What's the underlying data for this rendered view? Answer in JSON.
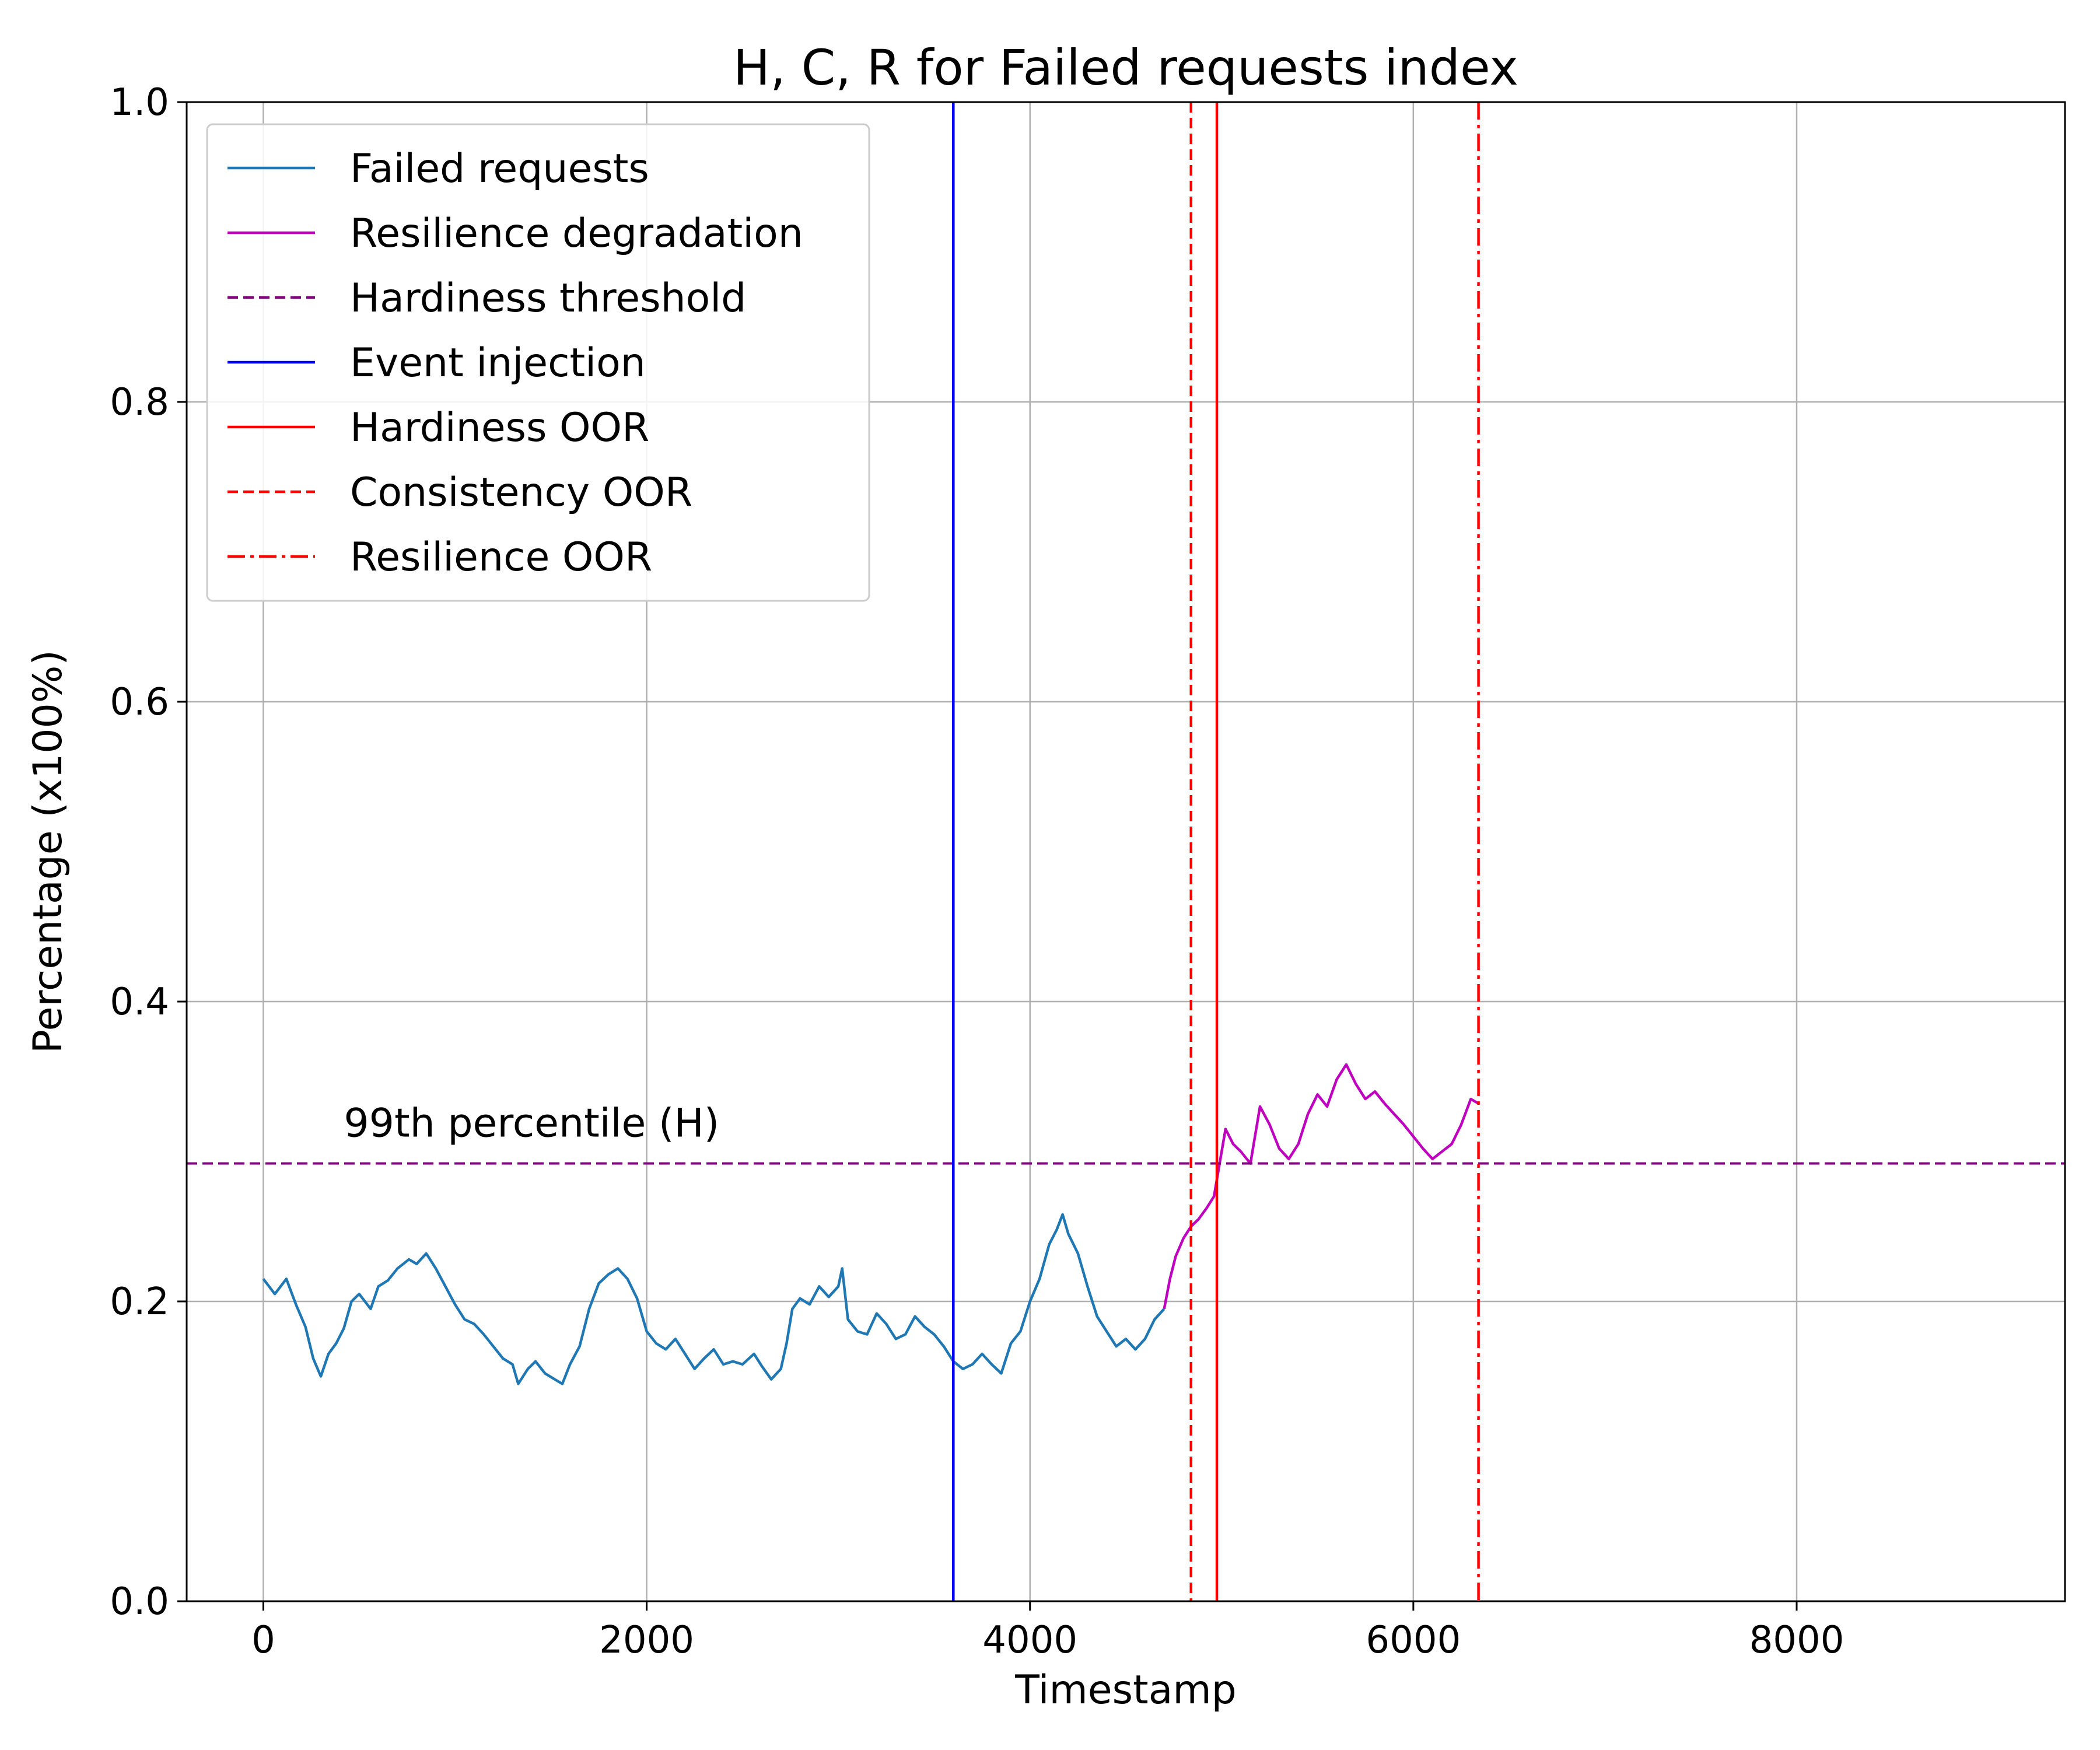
{
  "chart_data": {
    "type": "line",
    "title": "H, C, R for Failed requests index",
    "xlabel": "Timestamp",
    "ylabel": "Percentage (x100%)",
    "xlim": [
      -400,
      9400
    ],
    "ylim": [
      0.0,
      1.0
    ],
    "xticks": [
      0,
      2000,
      4000,
      6000,
      8000
    ],
    "xtick_labels": [
      "0",
      "2000",
      "4000",
      "6000",
      "8000"
    ],
    "yticks": [
      0.0,
      0.2,
      0.4,
      0.6,
      0.8,
      1.0
    ],
    "ytick_labels": [
      "0.0",
      "0.2",
      "0.4",
      "0.6",
      "0.8",
      "1.0"
    ],
    "grid": true,
    "legend_position": "upper-left",
    "colors": {
      "failed_requests": "#1f77b4",
      "resilience_degradation": "#bf00bf",
      "hardiness_threshold": "#800080",
      "event_injection": "#0000ff",
      "oor": "#ff0000"
    },
    "series": [
      {
        "name": "Failed requests",
        "style": "solid",
        "color": "#1f77b4",
        "points": [
          [
            0,
            0.215
          ],
          [
            60,
            0.205
          ],
          [
            120,
            0.215
          ],
          [
            170,
            0.198
          ],
          [
            220,
            0.183
          ],
          [
            260,
            0.162
          ],
          [
            300,
            0.15
          ],
          [
            340,
            0.165
          ],
          [
            380,
            0.172
          ],
          [
            420,
            0.182
          ],
          [
            460,
            0.2
          ],
          [
            500,
            0.205
          ],
          [
            560,
            0.195
          ],
          [
            600,
            0.21
          ],
          [
            650,
            0.214
          ],
          [
            700,
            0.222
          ],
          [
            760,
            0.228
          ],
          [
            800,
            0.225
          ],
          [
            850,
            0.232
          ],
          [
            900,
            0.222
          ],
          [
            950,
            0.21
          ],
          [
            1000,
            0.198
          ],
          [
            1050,
            0.188
          ],
          [
            1100,
            0.185
          ],
          [
            1150,
            0.178
          ],
          [
            1200,
            0.17
          ],
          [
            1250,
            0.162
          ],
          [
            1300,
            0.158
          ],
          [
            1330,
            0.145
          ],
          [
            1380,
            0.155
          ],
          [
            1420,
            0.16
          ],
          [
            1470,
            0.152
          ],
          [
            1520,
            0.148
          ],
          [
            1560,
            0.145
          ],
          [
            1600,
            0.158
          ],
          [
            1650,
            0.17
          ],
          [
            1700,
            0.195
          ],
          [
            1750,
            0.212
          ],
          [
            1800,
            0.218
          ],
          [
            1850,
            0.222
          ],
          [
            1900,
            0.215
          ],
          [
            1950,
            0.202
          ],
          [
            2000,
            0.18
          ],
          [
            2050,
            0.172
          ],
          [
            2100,
            0.168
          ],
          [
            2150,
            0.175
          ],
          [
            2200,
            0.165
          ],
          [
            2250,
            0.155
          ],
          [
            2300,
            0.162
          ],
          [
            2350,
            0.168
          ],
          [
            2400,
            0.158
          ],
          [
            2450,
            0.16
          ],
          [
            2500,
            0.158
          ],
          [
            2560,
            0.165
          ],
          [
            2600,
            0.157
          ],
          [
            2650,
            0.148
          ],
          [
            2700,
            0.155
          ],
          [
            2730,
            0.172
          ],
          [
            2760,
            0.195
          ],
          [
            2800,
            0.202
          ],
          [
            2850,
            0.198
          ],
          [
            2900,
            0.21
          ],
          [
            2950,
            0.203
          ],
          [
            3000,
            0.21
          ],
          [
            3020,
            0.222
          ],
          [
            3050,
            0.188
          ],
          [
            3100,
            0.18
          ],
          [
            3150,
            0.178
          ],
          [
            3200,
            0.192
          ],
          [
            3250,
            0.185
          ],
          [
            3300,
            0.175
          ],
          [
            3350,
            0.178
          ],
          [
            3400,
            0.19
          ],
          [
            3450,
            0.183
          ],
          [
            3500,
            0.178
          ],
          [
            3550,
            0.17
          ],
          [
            3600,
            0.16
          ],
          [
            3650,
            0.155
          ],
          [
            3700,
            0.158
          ],
          [
            3750,
            0.165
          ],
          [
            3800,
            0.158
          ],
          [
            3850,
            0.152
          ],
          [
            3900,
            0.172
          ],
          [
            3950,
            0.18
          ],
          [
            4000,
            0.2
          ],
          [
            4050,
            0.215
          ],
          [
            4100,
            0.238
          ],
          [
            4140,
            0.248
          ],
          [
            4170,
            0.258
          ],
          [
            4200,
            0.245
          ],
          [
            4250,
            0.232
          ],
          [
            4300,
            0.21
          ],
          [
            4350,
            0.19
          ],
          [
            4400,
            0.18
          ],
          [
            4450,
            0.17
          ],
          [
            4500,
            0.175
          ],
          [
            4550,
            0.168
          ],
          [
            4600,
            0.175
          ],
          [
            4650,
            0.188
          ],
          [
            4700,
            0.195
          ]
        ]
      },
      {
        "name": "Resilience degradation",
        "style": "solid",
        "color": "#bf00bf",
        "points": [
          [
            4700,
            0.195
          ],
          [
            4730,
            0.215
          ],
          [
            4760,
            0.23
          ],
          [
            4800,
            0.242
          ],
          [
            4840,
            0.25
          ],
          [
            4880,
            0.255
          ],
          [
            4920,
            0.262
          ],
          [
            4960,
            0.27
          ],
          [
            5000,
            0.3
          ],
          [
            5020,
            0.315
          ],
          [
            5060,
            0.305
          ],
          [
            5100,
            0.3
          ],
          [
            5150,
            0.292
          ],
          [
            5200,
            0.33
          ],
          [
            5250,
            0.318
          ],
          [
            5300,
            0.302
          ],
          [
            5350,
            0.295
          ],
          [
            5400,
            0.305
          ],
          [
            5450,
            0.325
          ],
          [
            5500,
            0.338
          ],
          [
            5550,
            0.33
          ],
          [
            5600,
            0.348
          ],
          [
            5650,
            0.358
          ],
          [
            5700,
            0.345
          ],
          [
            5750,
            0.335
          ],
          [
            5800,
            0.34
          ],
          [
            5850,
            0.332
          ],
          [
            5900,
            0.325
          ],
          [
            5950,
            0.318
          ],
          [
            6000,
            0.31
          ],
          [
            6050,
            0.302
          ],
          [
            6100,
            0.295
          ],
          [
            6150,
            0.3
          ],
          [
            6200,
            0.305
          ],
          [
            6250,
            0.318
          ],
          [
            6300,
            0.335
          ],
          [
            6340,
            0.332
          ]
        ]
      }
    ],
    "hlines": [
      {
        "name": "Hardiness threshold",
        "y": 0.292,
        "style": "dashed",
        "color": "#800080"
      }
    ],
    "vlines": [
      {
        "name": "Event injection",
        "x": 3600,
        "style": "solid",
        "color": "#0000ff"
      },
      {
        "name": "Hardiness OOR",
        "x": 4975,
        "style": "solid",
        "color": "#ff0000"
      },
      {
        "name": "Consistency OOR",
        "x": 4840,
        "style": "dashed",
        "color": "#ff0000"
      },
      {
        "name": "Resilience OOR",
        "x": 6340,
        "style": "dashdot",
        "color": "#ff0000"
      }
    ],
    "legend": [
      {
        "label": "Failed requests",
        "style": "solid",
        "color": "#1f77b4"
      },
      {
        "label": "Resilience degradation",
        "style": "solid",
        "color": "#bf00bf"
      },
      {
        "label": "Hardiness threshold",
        "style": "dashed",
        "color": "#800080"
      },
      {
        "label": "Event injection",
        "style": "solid",
        "color": "#0000ff"
      },
      {
        "label": "Hardiness OOR",
        "style": "solid",
        "color": "#ff0000"
      },
      {
        "label": "Consistency OOR",
        "style": "dashed",
        "color": "#ff0000"
      },
      {
        "label": "Resilience OOR",
        "style": "dashdot",
        "color": "#ff0000"
      }
    ],
    "annotations": [
      {
        "text": "99th percentile (H)",
        "x": 420,
        "y": 0.31,
        "color": "#800080"
      }
    ]
  }
}
